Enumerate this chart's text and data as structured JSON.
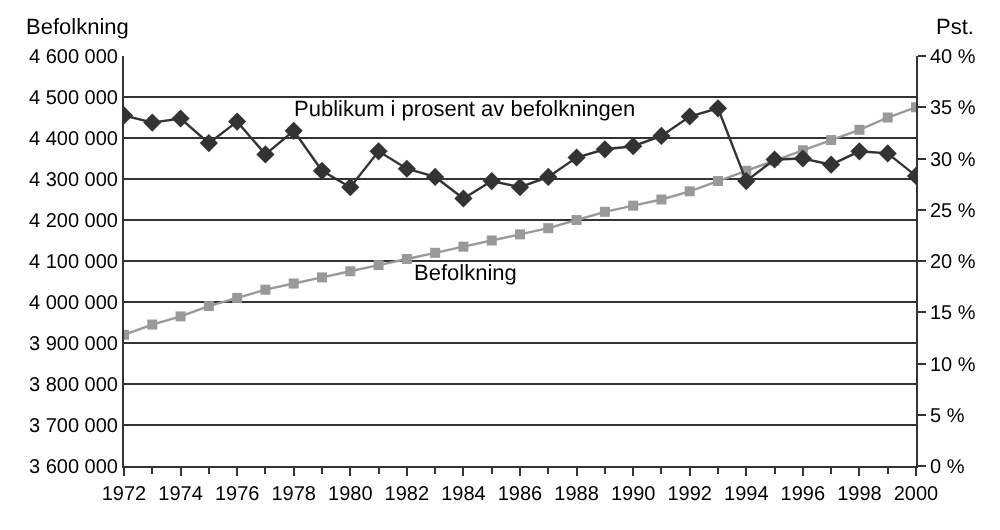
{
  "chart_data": {
    "type": "line",
    "ylabel": "Befolkning",
    "y2label": "Pst.",
    "x": [
      1972,
      1973,
      1974,
      1975,
      1976,
      1977,
      1978,
      1979,
      1980,
      1981,
      1982,
      1983,
      1984,
      1985,
      1986,
      1987,
      1988,
      1989,
      1990,
      1991,
      1992,
      1993,
      1994,
      1995,
      1996,
      1997,
      1998,
      1999,
      2000
    ],
    "series": [
      {
        "name": "Publikum i prosent av befolkningen",
        "color": "#333333",
        "axis": "y2",
        "marker": "diamond",
        "values": [
          34.2,
          33.5,
          33.9,
          31.5,
          33.6,
          30.4,
          32.7,
          28.8,
          27.2,
          30.7,
          29.0,
          28.2,
          26.1,
          27.8,
          27.2,
          28.2,
          30.1,
          30.9,
          31.2,
          32.2,
          34.1,
          34.9,
          27.8,
          29.9,
          30.0,
          29.4,
          30.7,
          30.5,
          28.3
        ]
      },
      {
        "name": "Befolkning",
        "color": "#999999",
        "axis": "y",
        "marker": "square",
        "values": [
          3920000,
          3945000,
          3965000,
          3990000,
          4010000,
          4030000,
          4045000,
          4060000,
          4075000,
          4090000,
          4105000,
          4120000,
          4135000,
          4150000,
          4165000,
          4180000,
          4200000,
          4220000,
          4235000,
          4250000,
          4270000,
          4295000,
          4320000,
          4345000,
          4370000,
          4395000,
          4420000,
          4450000,
          4475000
        ]
      }
    ],
    "xlim": [
      1972,
      2000
    ],
    "xticks": [
      1972,
      1974,
      1976,
      1978,
      1980,
      1982,
      1984,
      1986,
      1988,
      1990,
      1992,
      1994,
      1996,
      1998,
      2000
    ],
    "ylim": [
      3600000,
      4600000
    ],
    "yticks": [
      {
        "value": 3600000,
        "label": "3 600 000"
      },
      {
        "value": 3700000,
        "label": "3 700 000"
      },
      {
        "value": 3800000,
        "label": "3 800 000"
      },
      {
        "value": 3900000,
        "label": "3 900 000"
      },
      {
        "value": 4000000,
        "label": "4 000 000"
      },
      {
        "value": 4100000,
        "label": "4 100 000"
      },
      {
        "value": 4200000,
        "label": "4 200 000"
      },
      {
        "value": 4300000,
        "label": "4 300 000"
      },
      {
        "value": 4400000,
        "label": "4 400 000"
      },
      {
        "value": 4500000,
        "label": "4 500 000"
      },
      {
        "value": 4600000,
        "label": "4 600 000"
      }
    ],
    "y2lim": [
      0,
      40
    ],
    "y2ticks": [
      {
        "value": 0,
        "label": "0 %"
      },
      {
        "value": 5,
        "label": "5 %"
      },
      {
        "value": 10,
        "label": "10 %"
      },
      {
        "value": 15,
        "label": "15 %"
      },
      {
        "value": 20,
        "label": "20 %"
      },
      {
        "value": 25,
        "label": "25 %"
      },
      {
        "value": 30,
        "label": "30 %"
      },
      {
        "value": 35,
        "label": "35 %"
      },
      {
        "value": 40,
        "label": "40 %"
      }
    ],
    "grid": "y",
    "legend": false,
    "line_style": "solid"
  }
}
